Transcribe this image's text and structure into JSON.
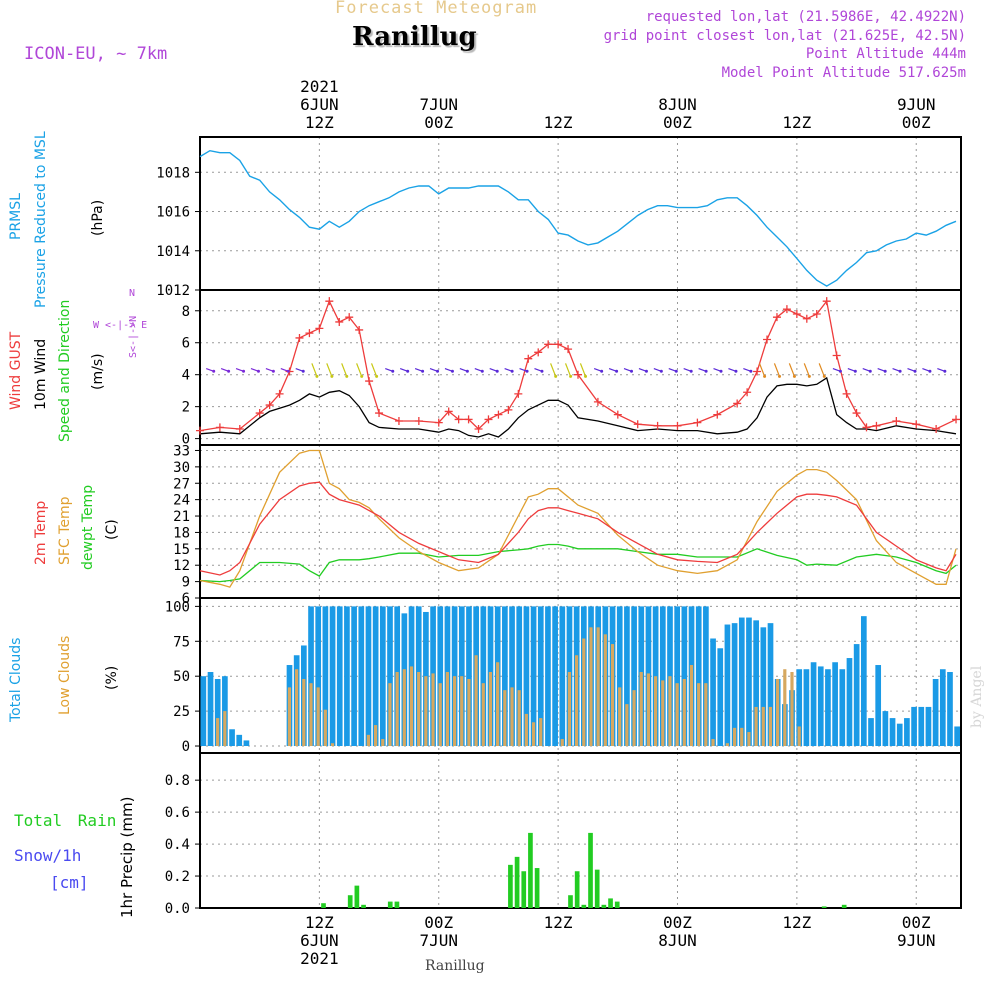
{
  "header": {
    "subtitle": "Forecast Meteogram",
    "title": "Ranillug",
    "model": "ICON-EU, ~ 7km",
    "requested": "requested lon,lat (21.5986E, 42.4922N)",
    "grid_point": "grid point closest lon,lat (21.625E, 42.5N)",
    "point_altitude": "Point Altitude 444m",
    "model_altitude": "Model Point Altitude 517.625m"
  },
  "time_axis": {
    "top": [
      {
        "lines": [
          "2021",
          "6JUN",
          "12Z"
        ],
        "hour": 12
      },
      {
        "lines": [
          "7JUN",
          "00Z"
        ],
        "hour": 24
      },
      {
        "lines": [
          "12Z"
        ],
        "hour": 36
      },
      {
        "lines": [
          "8JUN",
          "00Z"
        ],
        "hour": 48
      },
      {
        "lines": [
          "12Z"
        ],
        "hour": 60
      },
      {
        "lines": [
          "9JUN",
          "00Z"
        ],
        "hour": 72
      }
    ],
    "bottom": [
      {
        "lines": [
          "12Z",
          "6JUN",
          "2021"
        ],
        "hour": 12
      },
      {
        "lines": [
          "00Z",
          "7JUN"
        ],
        "hour": 24
      },
      {
        "lines": [
          "12Z"
        ],
        "hour": 36
      },
      {
        "lines": [
          "00Z",
          "8JUN"
        ],
        "hour": 48
      },
      {
        "lines": [
          "12Z"
        ],
        "hour": 60
      },
      {
        "lines": [
          "00Z",
          "9JUN"
        ],
        "hour": 72
      }
    ],
    "start_hour": 0,
    "end_hour": 76.5
  },
  "panel_labels": {
    "pressure": [
      "PRMSL",
      "Pressure Reduced to MSL",
      "(hPa)"
    ],
    "wind": [
      "Wind GUST",
      "10m Wind",
      "Speed and Direction",
      "(m/s)"
    ],
    "compass": [
      "N",
      "W <-|-> E",
      "S<-|->N",
      "S"
    ],
    "temp": [
      "2m Temp",
      "SFC Temp",
      "dewpt Temp",
      "(C)"
    ],
    "clouds": [
      "Total Clouds",
      "Low Clouds",
      "(%)"
    ],
    "precip_left": [
      "Total Rain",
      "Snow/1h",
      "[cm]"
    ],
    "precip_axis": "1hr Precip (mm)"
  },
  "footer": {
    "name": "Ranillug",
    "byline": "by Angel"
  },
  "colors": {
    "pressure": "#1aa2e6",
    "gust": "#ee3c3c",
    "wind": "#000000",
    "temp2m": "#ee3c3c",
    "sfc": "#e0a030",
    "dew": "#22cc22",
    "total_clouds": "#1a9ae6",
    "low_clouds": "#d6a860",
    "rain": "#22cc22",
    "label_purple": "#b046d8",
    "label_blue": "#1aa2e6",
    "label_orange": "#e0a030"
  },
  "chart_data": [
    {
      "type": "line",
      "name": "pressure",
      "ylim": [
        1012,
        1019.8
      ],
      "yticks": [
        1012,
        1014,
        1016,
        1018
      ],
      "x": [
        0,
        1,
        2,
        3,
        4,
        5,
        6,
        7,
        8,
        9,
        10,
        11,
        12,
        13,
        14,
        15,
        16,
        17,
        18,
        19,
        20,
        21,
        22,
        23,
        24,
        25,
        26,
        27,
        28,
        29,
        30,
        31,
        32,
        33,
        34,
        35,
        36,
        37,
        38,
        39,
        40,
        41,
        42,
        43,
        44,
        45,
        46,
        47,
        48,
        49,
        50,
        51,
        52,
        53,
        54,
        55,
        56,
        57,
        58,
        59,
        60,
        61,
        62,
        63,
        64,
        65,
        66,
        67,
        68,
        69,
        70,
        71,
        72,
        73,
        74,
        75,
        76
      ],
      "values": [
        1018.8,
        1019.1,
        1019.0,
        1019.0,
        1018.6,
        1017.8,
        1017.6,
        1017.0,
        1016.6,
        1016.1,
        1015.7,
        1015.2,
        1015.1,
        1015.5,
        1015.2,
        1015.5,
        1016.0,
        1016.3,
        1016.5,
        1016.7,
        1017.0,
        1017.2,
        1017.3,
        1017.3,
        1016.9,
        1017.2,
        1017.2,
        1017.2,
        1017.3,
        1017.3,
        1017.3,
        1017.0,
        1016.6,
        1016.6,
        1016.0,
        1015.6,
        1014.9,
        1014.8,
        1014.5,
        1014.3,
        1014.4,
        1014.7,
        1015.0,
        1015.4,
        1015.8,
        1016.1,
        1016.3,
        1016.3,
        1016.2,
        1016.2,
        1016.2,
        1016.3,
        1016.6,
        1016.7,
        1016.7,
        1016.3,
        1015.8,
        1015.2,
        1014.7,
        1014.2,
        1013.6,
        1013.0,
        1012.5,
        1012.2,
        1012.5,
        1013.0,
        1013.4,
        1013.9,
        1014.0,
        1014.3,
        1014.5,
        1014.6,
        1014.9,
        1014.8,
        1015.0,
        1015.3,
        1015.5
      ]
    },
    {
      "type": "line",
      "name": "wind",
      "ylim": [
        -0.4,
        9.3
      ],
      "yticks": [
        0,
        2,
        4,
        6,
        8
      ],
      "x": [
        0,
        2,
        4,
        6,
        7,
        8,
        9,
        10,
        11,
        12,
        13,
        14,
        15,
        16,
        17,
        18,
        20,
        22,
        24,
        25,
        26,
        27,
        28,
        29,
        30,
        31,
        32,
        33,
        34,
        35,
        36,
        37,
        38,
        40,
        42,
        44,
        46,
        48,
        50,
        52,
        54,
        55,
        56,
        57,
        58,
        59,
        60,
        61,
        62,
        63,
        64,
        65,
        66,
        67,
        68,
        70,
        72,
        74,
        76
      ],
      "gust": [
        0.5,
        0.7,
        0.6,
        1.6,
        2.1,
        2.8,
        4.2,
        6.3,
        6.6,
        6.9,
        8.6,
        7.3,
        7.6,
        6.8,
        3.6,
        1.6,
        1.1,
        1.1,
        1.0,
        1.7,
        1.2,
        1.2,
        0.6,
        1.2,
        1.5,
        1.8,
        2.8,
        5.0,
        5.4,
        5.9,
        5.9,
        5.6,
        4.0,
        2.3,
        1.5,
        0.9,
        0.8,
        0.8,
        1.0,
        1.5,
        2.2,
        2.9,
        4.2,
        6.2,
        7.6,
        8.1,
        7.8,
        7.5,
        7.8,
        8.6,
        5.2,
        2.8,
        1.6,
        0.7,
        0.8,
        1.1,
        0.9,
        0.6,
        1.2
      ],
      "wind": [
        0.3,
        0.4,
        0.3,
        1.3,
        1.7,
        1.9,
        2.1,
        2.4,
        2.8,
        2.6,
        2.9,
        3.0,
        2.7,
        2.0,
        1.0,
        0.7,
        0.6,
        0.6,
        0.4,
        0.6,
        0.5,
        0.2,
        0.1,
        0.3,
        0.1,
        0.6,
        1.3,
        1.8,
        2.1,
        2.4,
        2.4,
        2.1,
        1.3,
        1.1,
        0.8,
        0.5,
        0.6,
        0.5,
        0.5,
        0.3,
        0.4,
        0.6,
        1.3,
        2.6,
        3.3,
        3.4,
        3.4,
        3.3,
        3.4,
        3.8,
        1.5,
        1.0,
        0.6,
        0.6,
        0.5,
        0.8,
        0.6,
        0.5,
        0.3
      ]
    },
    {
      "type": "line",
      "name": "temperature",
      "ylim": [
        6,
        34
      ],
      "yticks": [
        6,
        9,
        12,
        15,
        18,
        21,
        24,
        27,
        30,
        33
      ],
      "x": [
        0,
        2,
        3,
        4,
        6,
        8,
        10,
        11,
        12,
        13,
        14,
        15,
        16,
        17,
        18,
        20,
        22,
        24,
        26,
        28,
        30,
        32,
        33,
        34,
        35,
        36,
        37,
        38,
        40,
        42,
        44,
        46,
        48,
        50,
        52,
        54,
        56,
        58,
        60,
        61,
        62,
        63,
        64,
        66,
        68,
        70,
        72,
        74,
        75,
        76
      ],
      "t2m": [
        11,
        10.2,
        11,
        12.5,
        19.5,
        24,
        26.5,
        27,
        27.2,
        25,
        24,
        23.5,
        23,
        22,
        21,
        18,
        16,
        14.5,
        13,
        12.5,
        14,
        18,
        20.5,
        22,
        22.5,
        22.5,
        22,
        21.5,
        20.5,
        18,
        16,
        14,
        13,
        12.7,
        12.5,
        14,
        18,
        21.5,
        24.5,
        25,
        25,
        24.8,
        24.5,
        23,
        18,
        15.5,
        13,
        11.5,
        11,
        14
      ],
      "sfc": [
        9.2,
        8.5,
        8,
        11,
        21,
        29,
        32.5,
        33,
        33,
        27,
        26,
        24,
        23.5,
        22.5,
        20.5,
        17,
        14.5,
        12.5,
        11,
        11.5,
        14,
        21,
        24.5,
        25,
        26,
        26,
        24.5,
        23,
        21.5,
        17.5,
        14.5,
        12,
        11,
        10.5,
        11,
        13,
        20,
        25.5,
        28.5,
        29.5,
        29.5,
        29,
        27.5,
        24,
        16.5,
        12.5,
        10.5,
        8.5,
        8.5,
        15
      ],
      "dew": [
        9.2,
        9,
        9.2,
        9.5,
        12.5,
        12.5,
        12.2,
        11,
        10,
        12.5,
        13,
        13,
        13,
        13.2,
        13.5,
        14.2,
        14.2,
        13.5,
        13.8,
        13.8,
        14.5,
        14.8,
        15,
        15.5,
        15.8,
        15.8,
        15.5,
        15,
        15,
        15,
        14.5,
        14,
        14,
        13.5,
        13.5,
        13.5,
        15,
        13.8,
        13,
        12,
        12.2,
        12.1,
        12,
        13.5,
        14,
        13.5,
        12.5,
        11,
        10.5,
        12
      ]
    },
    {
      "type": "bar",
      "name": "clouds",
      "ylim": [
        -5,
        106
      ],
      "yticks": [
        0,
        25,
        50,
        75,
        100
      ],
      "total": [
        50,
        53,
        48,
        50,
        12,
        8,
        4,
        0,
        0,
        0,
        0,
        0,
        58,
        65,
        72,
        100,
        100,
        100,
        100,
        100,
        100,
        100,
        100,
        100,
        100,
        100,
        100,
        100,
        95,
        100,
        100,
        96,
        100,
        100,
        100,
        100,
        100,
        100,
        100,
        100,
        100,
        100,
        100,
        100,
        100,
        100,
        100,
        100,
        100,
        100,
        100,
        100,
        100,
        100,
        100,
        100,
        100,
        100,
        100,
        100,
        100,
        100,
        100,
        100,
        100,
        100,
        100,
        100,
        100,
        100,
        100,
        77,
        70,
        87,
        88,
        92,
        92,
        90,
        85,
        88,
        48,
        30,
        40,
        55,
        55,
        60,
        57,
        55,
        60,
        55,
        63,
        73,
        93,
        20,
        58,
        25,
        20,
        16,
        20,
        28,
        28,
        28,
        48,
        55,
        53,
        14
      ],
      "low": [
        0,
        0,
        20,
        25,
        0,
        0,
        0,
        0,
        0,
        0,
        0,
        0,
        42,
        55,
        48,
        45,
        42,
        26,
        2,
        0,
        0,
        0,
        0,
        8,
        15,
        5,
        45,
        53,
        55,
        57,
        53,
        50,
        52,
        45,
        53,
        50,
        50,
        48,
        65,
        45,
        53,
        60,
        40,
        42,
        40,
        23,
        17,
        20,
        0,
        0,
        5,
        53,
        65,
        77,
        85,
        85,
        80,
        73,
        42,
        30,
        40,
        53,
        52,
        50,
        47,
        50,
        45,
        48,
        58,
        45,
        45,
        5,
        0,
        2,
        13,
        13,
        10,
        28,
        28,
        28,
        48,
        55,
        53,
        14,
        0,
        0,
        0,
        0,
        0,
        0,
        0,
        0,
        0,
        0,
        0,
        0,
        0,
        0,
        0,
        0,
        0,
        0,
        0,
        0,
        0,
        0,
        0,
        0
      ]
    },
    {
      "type": "bar",
      "name": "precip",
      "ylim": [
        0,
        0.97
      ],
      "yticks": [
        0,
        0.2,
        0.4,
        0.6,
        0.8
      ],
      "values": [
        0,
        0,
        0,
        0,
        0,
        0,
        0,
        0,
        0,
        0,
        0,
        0,
        0,
        0,
        0,
        0,
        0,
        0,
        0.03,
        0,
        0,
        0,
        0.08,
        0.14,
        0.02,
        0,
        0,
        0,
        0.04,
        0.04,
        0,
        0,
        0,
        0,
        0,
        0,
        0,
        0,
        0,
        0,
        0,
        0,
        0,
        0,
        0,
        0,
        0.27,
        0.32,
        0.23,
        0.47,
        0.25,
        0,
        0,
        0,
        0,
        0.08,
        0.23,
        0.02,
        0.47,
        0.24,
        0.02,
        0.06,
        0.04,
        0,
        0,
        0,
        0,
        0,
        0,
        0,
        0,
        0,
        0,
        0,
        0,
        0,
        0,
        0,
        0,
        0,
        0,
        0,
        0,
        0,
        0,
        0,
        0,
        0,
        0,
        0,
        0,
        0,
        0,
        0.01,
        0,
        0,
        0.02,
        0,
        0,
        0,
        0,
        0,
        0,
        0,
        0,
        0,
        0,
        0,
        0,
        0,
        0,
        0,
        0,
        0
      ]
    }
  ]
}
